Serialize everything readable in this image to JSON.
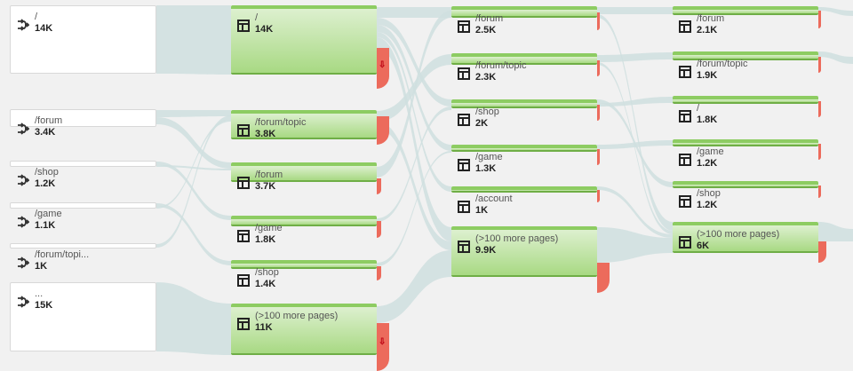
{
  "colors": {
    "flow": "#cfdfdf",
    "page": "#a8d983",
    "drop": "#ec6b5c"
  },
  "icons": {
    "source": "arrow-merge-icon",
    "page": "page-layout-icon",
    "exit": "exit-arrow-icon"
  },
  "exit_glyph": "⇩",
  "sources": [
    {
      "name": "/",
      "value": "14K"
    },
    {
      "name": "/forum",
      "value": "3.4K"
    },
    {
      "name": "/shop",
      "value": "1.2K"
    },
    {
      "name": "/game",
      "value": "1.1K"
    },
    {
      "name": "/forum/topi...",
      "value": "1K"
    },
    {
      "name": "...",
      "value": "15K"
    }
  ],
  "step1": [
    {
      "name": "/",
      "value": "14K"
    },
    {
      "name": "/forum/topic",
      "value": "3.8K"
    },
    {
      "name": "/forum",
      "value": "3.7K"
    },
    {
      "name": "/game",
      "value": "1.8K"
    },
    {
      "name": "/shop",
      "value": "1.4K"
    },
    {
      "name": "(>100 more pages)",
      "value": "11K"
    }
  ],
  "step2": [
    {
      "name": "/forum",
      "value": "2.5K"
    },
    {
      "name": "/forum/topic",
      "value": "2.3K"
    },
    {
      "name": "/shop",
      "value": "2K"
    },
    {
      "name": "/game",
      "value": "1.3K"
    },
    {
      "name": "/account",
      "value": "1K"
    },
    {
      "name": "(>100 more pages)",
      "value": "9.9K"
    }
  ],
  "step3": [
    {
      "name": "/forum",
      "value": "2.1K"
    },
    {
      "name": "/forum/topic",
      "value": "1.9K"
    },
    {
      "name": "/",
      "value": "1.8K"
    },
    {
      "name": "/game",
      "value": "1.2K"
    },
    {
      "name": "/shop",
      "value": "1.2K"
    },
    {
      "name": "(>100 more pages)",
      "value": "6K"
    }
  ]
}
